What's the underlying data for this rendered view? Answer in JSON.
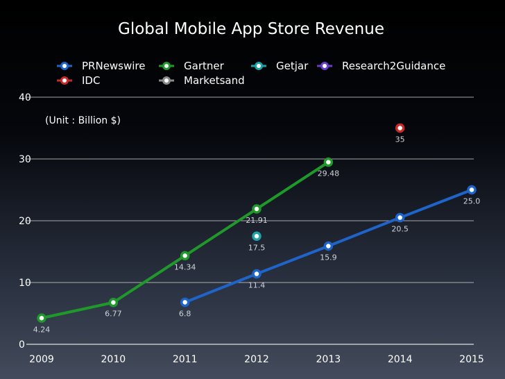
{
  "chart_data": {
    "type": "line",
    "title": "Global Mobile App Store Revenue",
    "unit_note": "(Unit : Billion $)",
    "x": [
      "2009",
      "2010",
      "2011",
      "2012",
      "2013",
      "2014",
      "2015"
    ],
    "y_ticks": [
      "0",
      "10",
      "20",
      "30",
      "40"
    ],
    "ylim": [
      0,
      40
    ],
    "grid": "horizontal",
    "legend_position": "top",
    "series": [
      {
        "name": "PRNewswire",
        "color": "#1f64c8",
        "points": [
          {
            "x": "2011",
            "y": 6.8,
            "label": "6.8"
          },
          {
            "x": "2012",
            "y": 11.4,
            "label": "11.4"
          },
          {
            "x": "2013",
            "y": 15.9,
            "label": "15.9"
          },
          {
            "x": "2014",
            "y": 20.5,
            "label": "20.5"
          },
          {
            "x": "2015",
            "y": 25.0,
            "label": "25.0"
          }
        ]
      },
      {
        "name": "Gartner",
        "color": "#1f9a2a",
        "points": [
          {
            "x": "2009",
            "y": 4.24,
            "label": "4.24"
          },
          {
            "x": "2010",
            "y": 6.77,
            "label": "6.77"
          },
          {
            "x": "2011",
            "y": 14.34,
            "label": "14.34"
          },
          {
            "x": "2012",
            "y": 21.91,
            "label": "21.91"
          },
          {
            "x": "2013",
            "y": 29.48,
            "label": "29.48"
          }
        ]
      },
      {
        "name": "Getjar",
        "color": "#1fa3a8",
        "points": [
          {
            "x": "2012",
            "y": 17.5,
            "label": "17.5"
          }
        ]
      },
      {
        "name": "Research2Guidance",
        "color": "#6a3fc8",
        "points": []
      },
      {
        "name": "IDC",
        "color": "#c82a2a",
        "points": [
          {
            "x": "2014",
            "y": 35,
            "label": "35"
          }
        ]
      },
      {
        "name": "Marketsand",
        "color": "#8a8a8a",
        "points": []
      }
    ]
  }
}
